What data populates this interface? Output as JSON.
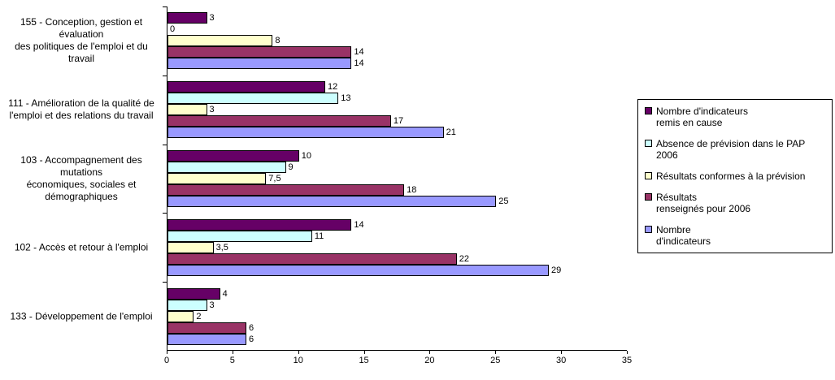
{
  "chart_data": {
    "type": "bar",
    "orientation": "horizontal",
    "title": "",
    "xlabel": "",
    "ylabel": "",
    "xlim": [
      0,
      35
    ],
    "x_ticks": [
      0,
      5,
      10,
      15,
      20,
      25,
      30,
      35
    ],
    "grid": false,
    "legend_position": "right",
    "decimal_separator": ",",
    "categories": [
      "155 - Conception, gestion et\névaluation\ndes politiques de l'emploi et du\ntravail",
      "111 - Amélioration de la qualité de\nl'emploi et des relations du travail",
      "103 - Accompagnement des\nmutations\néconomiques, sociales et\ndémographiques",
      "102 - Accès et retour à l'emploi",
      "133 - Développement de l'emploi"
    ],
    "series": [
      {
        "name": "Nombre d'indicateurs remis en cause",
        "legend_label": "Nombre d'indicateurs\nremis en cause",
        "color": "#660066",
        "values": [
          3,
          12,
          10,
          14,
          4
        ]
      },
      {
        "name": "Absence de prévision dans le PAP 2006",
        "legend_label": "Absence de prévision dans le PAP 2006",
        "color": "#CCFFFF",
        "values": [
          0,
          13,
          9,
          11,
          3
        ]
      },
      {
        "name": "Résultats conformes à la prévision",
        "legend_label": "Résultats conformes à la prévision",
        "color": "#FFFFCC",
        "values": [
          8,
          3,
          7.5,
          3.5,
          2
        ]
      },
      {
        "name": "Résultats renseignés pour 2006",
        "legend_label": "Résultats\nrenseignés pour 2006",
        "color": "#993366",
        "values": [
          14,
          17,
          18,
          22,
          6
        ]
      },
      {
        "name": "Nombre d'indicateurs",
        "legend_label": "Nombre\nd'indicateurs",
        "color": "#9999FF",
        "values": [
          14,
          21,
          25,
          29,
          6
        ]
      }
    ]
  }
}
